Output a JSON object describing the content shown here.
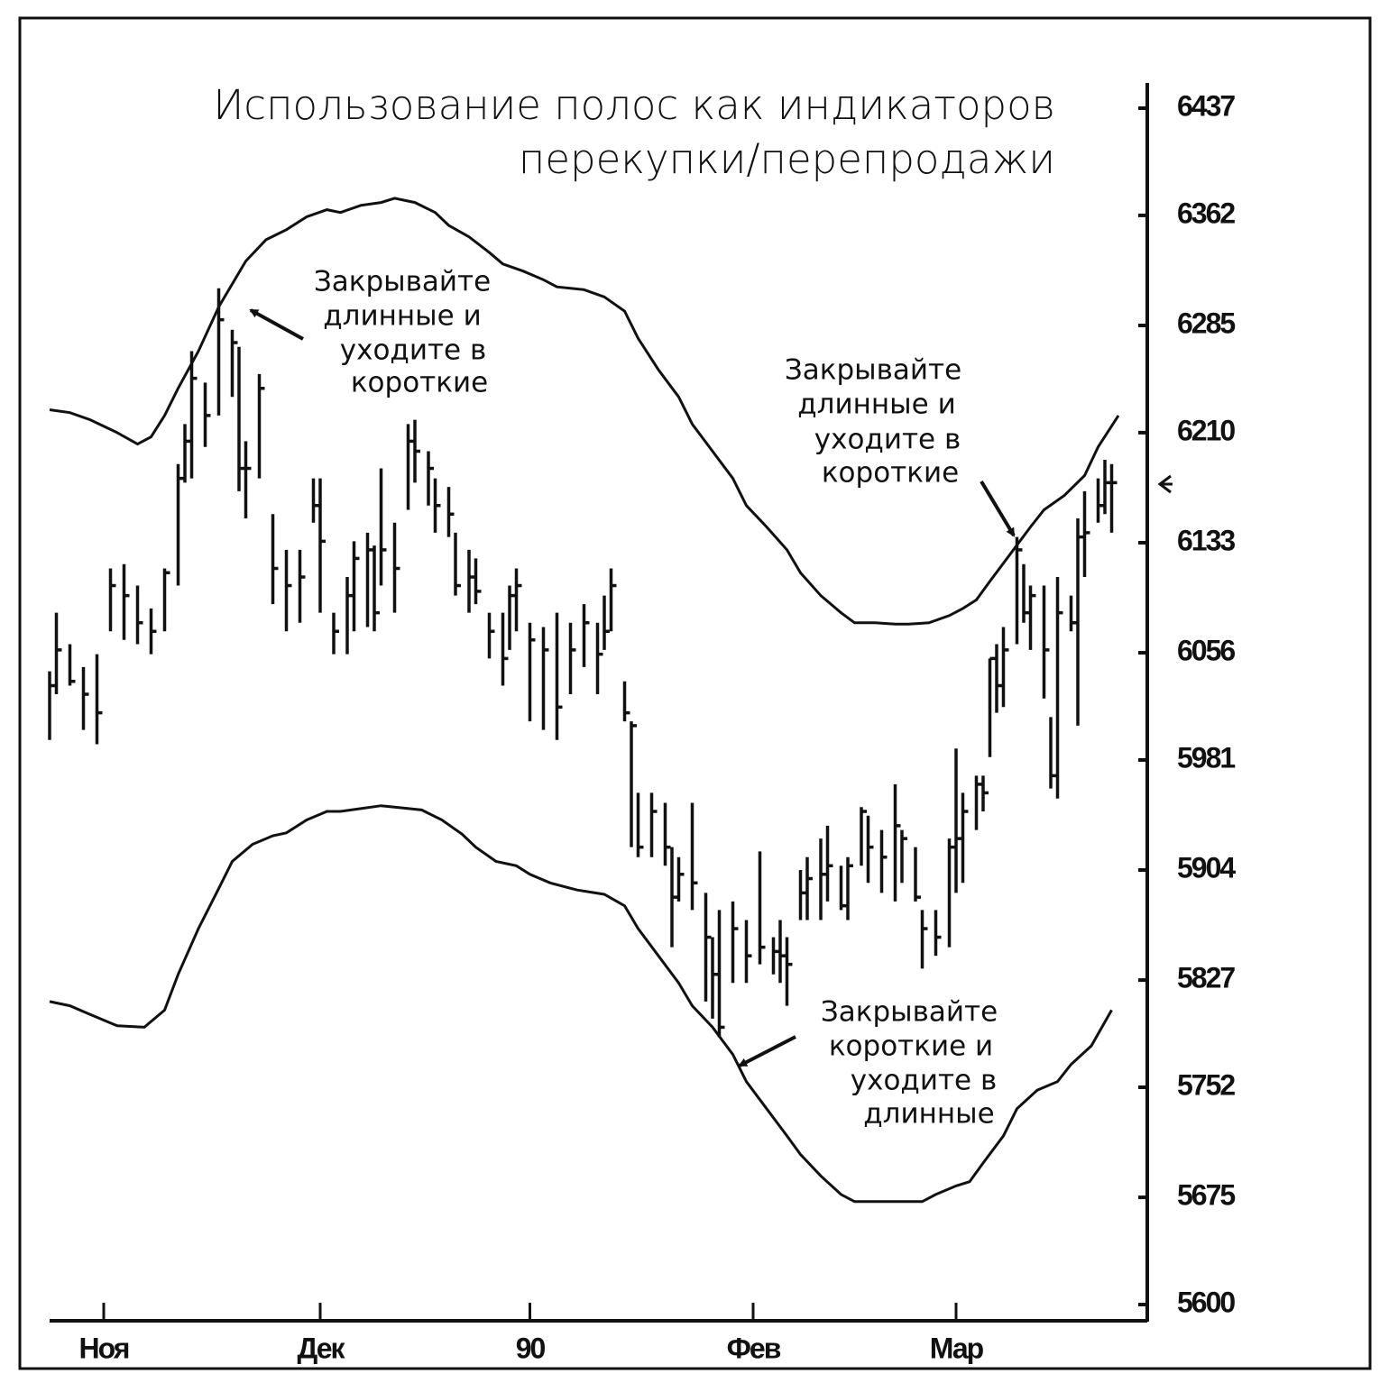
{
  "chart_data": {
    "type": "ohlc",
    "title": [
      "Использование полос как индикаторов",
      "перекупки/перепродажи"
    ],
    "ylim": [
      5600,
      6437
    ],
    "yticks": [
      6437,
      6362,
      6285,
      6210,
      6133,
      6056,
      5981,
      5904,
      5827,
      5752,
      5675,
      5600
    ],
    "xlim": [
      -2,
      162
    ],
    "xticks": [
      {
        "value": 8,
        "label": "Ноя"
      },
      {
        "value": 40,
        "label": "Дек"
      },
      {
        "value": 71,
        "label": "90"
      },
      {
        "value": 104,
        "label": "Фев"
      },
      {
        "value": 134,
        "label": "Мар"
      }
    ],
    "color": "#111111",
    "bars": {
      "x": [
        0,
        1,
        3,
        5,
        7,
        9,
        11,
        13,
        15,
        17,
        19,
        20,
        21,
        23,
        25,
        27,
        28,
        29,
        31,
        33,
        35,
        37,
        39,
        40,
        42,
        44,
        45,
        47,
        48,
        49,
        51,
        53,
        54,
        56,
        57,
        59,
        60,
        62,
        63,
        65,
        67,
        68,
        69,
        71,
        73,
        75,
        77,
        79,
        81,
        82,
        83,
        85,
        86,
        87,
        89,
        91,
        92,
        93,
        95,
        97,
        98,
        99,
        101,
        103,
        105,
        107,
        108,
        109,
        111,
        112,
        114,
        115,
        117,
        118,
        120,
        121,
        123,
        125,
        126,
        128,
        129,
        131,
        133,
        134,
        135,
        137,
        138,
        139,
        140,
        141,
        143,
        144,
        145,
        147,
        148,
        149,
        151,
        152,
        153,
        155,
        156,
        157
      ],
      "high": [
        6043,
        6084,
        6062,
        6046,
        6055,
        6115,
        6118,
        6103,
        6087,
        6115,
        6188,
        6216,
        6267,
        6245,
        6311,
        6282,
        6270,
        6204,
        6251,
        6153,
        6128,
        6128,
        6178,
        6178,
        6084,
        6109,
        6134,
        6140,
        6131,
        6185,
        6147,
        6216,
        6219,
        6197,
        6178,
        6172,
        6140,
        6128,
        6122,
        6084,
        6084,
        6103,
        6115,
        6077,
        6074,
        6084,
        6077,
        6090,
        6077,
        6096,
        6115,
        6036,
        6008,
        5958,
        5958,
        5951,
        5920,
        5913,
        5951,
        5888,
        5857,
        5876,
        5882,
        5869,
        5917,
        5857,
        5869,
        5857,
        5904,
        5913,
        5926,
        5935,
        5907,
        5913,
        5948,
        5942,
        5932,
        5964,
        5932,
        5920,
        5876,
        5876,
        5926,
        5989,
        5958,
        5970,
        5970,
        6052,
        6062,
        6074,
        6137,
        6118,
        6103,
        6103,
        6011,
        6109,
        6096,
        6150,
        6169,
        6178,
        6191,
        6188
      ],
      "low": [
        5995,
        6027,
        6033,
        6002,
        5992,
        6071,
        6065,
        6062,
        6055,
        6071,
        6103,
        6175,
        6178,
        6200,
        6222,
        6235,
        6169,
        6150,
        6178,
        6090,
        6071,
        6077,
        6147,
        6084,
        6055,
        6055,
        6071,
        6074,
        6071,
        6103,
        6084,
        6156,
        6175,
        6159,
        6140,
        6137,
        6096,
        6084,
        6090,
        6052,
        6033,
        6058,
        6071,
        6008,
        6002,
        5995,
        6027,
        6046,
        6027,
        6058,
        6071,
        6008,
        5920,
        5913,
        5913,
        5907,
        5850,
        5882,
        5876,
        5812,
        5800,
        5787,
        5825,
        5825,
        5838,
        5831,
        5825,
        5809,
        5869,
        5869,
        5869,
        5882,
        5876,
        5869,
        5907,
        5895,
        5888,
        5882,
        5895,
        5882,
        5835,
        5844,
        5850,
        5888,
        5895,
        5932,
        5945,
        5983,
        6014,
        6018,
        6062,
        6077,
        6058,
        6024,
        5961,
        5954,
        6071,
        6005,
        6109,
        6147,
        6153,
        6140
      ],
      "close": [
        6033,
        6058,
        6036,
        6027,
        6014,
        6103,
        6096,
        6077,
        6071,
        6112,
        6178,
        6204,
        6248,
        6222,
        6289,
        6273,
        6185,
        6185,
        6241,
        6115,
        6103,
        6109,
        6159,
        6134,
        6071,
        6096,
        6122,
        6128,
        6084,
        6128,
        6115,
        6204,
        6197,
        6185,
        6159,
        6153,
        6103,
        6109,
        6099,
        6071,
        6052,
        6096,
        6103,
        6065,
        6058,
        6018,
        6058,
        6077,
        6055,
        6071,
        6103,
        6014,
        6005,
        5920,
        5945,
        5920,
        5885,
        5901,
        5895,
        5857,
        5831,
        5794,
        5863,
        5844,
        5850,
        5847,
        5844,
        5838,
        5888,
        5898,
        5901,
        5907,
        5879,
        5907,
        5945,
        5920,
        5913,
        5935,
        5926,
        5885,
        5863,
        5857,
        5920,
        5926,
        5945,
        5964,
        5958,
        6052,
        6033,
        6058,
        6128,
        6084,
        6096,
        6058,
        5970,
        6084,
        6077,
        6137,
        6140,
        6159,
        6175,
        6175
      ]
    },
    "bands": [
      {
        "x": [
          0,
          3,
          6,
          10,
          13,
          15,
          17,
          19,
          22,
          25,
          27,
          29,
          32,
          35,
          38,
          41,
          43,
          46,
          49,
          51,
          54,
          57,
          59,
          62,
          65,
          67,
          70,
          73,
          75,
          79,
          82,
          85,
          87,
          90,
          93,
          95,
          98,
          101,
          103,
          106,
          109,
          111,
          114,
          117,
          119,
          122,
          125,
          127,
          130,
          133,
          135,
          137,
          139,
          142,
          145,
          147,
          150,
          153,
          155,
          158
        ],
        "values": [
          6226,
          6224,
          6219,
          6210,
          6202,
          6207,
          6222,
          6241,
          6267,
          6298,
          6314,
          6330,
          6345,
          6352,
          6361,
          6366,
          6364,
          6369,
          6371,
          6374,
          6371,
          6364,
          6355,
          6347,
          6336,
          6328,
          6323,
          6317,
          6312,
          6310,
          6305,
          6295,
          6276,
          6254,
          6235,
          6216,
          6197,
          6178,
          6159,
          6144,
          6128,
          6112,
          6096,
          6084,
          6077,
          6077,
          6076,
          6076,
          6077,
          6082,
          6087,
          6093,
          6106,
          6125,
          6144,
          6156,
          6166,
          6180,
          6200,
          6222
        ]
      },
      {
        "x": [
          0,
          3,
          6,
          10,
          14,
          17,
          19,
          22,
          25,
          27,
          30,
          33,
          35,
          38,
          41,
          43,
          46,
          49,
          51,
          55,
          58,
          61,
          63,
          66,
          69,
          71,
          74,
          78,
          82,
          85,
          87,
          90,
          93,
          95,
          98,
          101,
          103,
          106,
          109,
          111,
          114,
          117,
          119,
          123,
          126,
          129,
          131,
          134,
          136,
          138,
          141,
          143,
          146,
          149,
          151,
          154,
          157
        ],
        "values": [
          5812,
          5809,
          5803,
          5795,
          5794,
          5806,
          5831,
          5863,
          5891,
          5910,
          5922,
          5928,
          5930,
          5939,
          5945,
          5945,
          5947,
          5949,
          5948,
          5946,
          5939,
          5929,
          5920,
          5910,
          5907,
          5901,
          5895,
          5890,
          5887,
          5879,
          5863,
          5844,
          5825,
          5809,
          5794,
          5775,
          5756,
          5737,
          5718,
          5705,
          5690,
          5677,
          5672,
          5672,
          5672,
          5672,
          5677,
          5683,
          5686,
          5699,
          5718,
          5737,
          5750,
          5756,
          5768,
          5781,
          5806
        ]
      }
    ],
    "annotations": [
      {
        "lines": [
          "Закрывайте",
          "длинные и",
          "уходите в",
          "короткие"
        ]
      },
      {
        "lines": [
          "Закрывайте",
          "длинные и",
          "уходите в",
          "короткие"
        ]
      },
      {
        "lines": [
          "Закрывайте",
          "короткие и",
          "уходите в",
          "длинные"
        ]
      }
    ]
  }
}
